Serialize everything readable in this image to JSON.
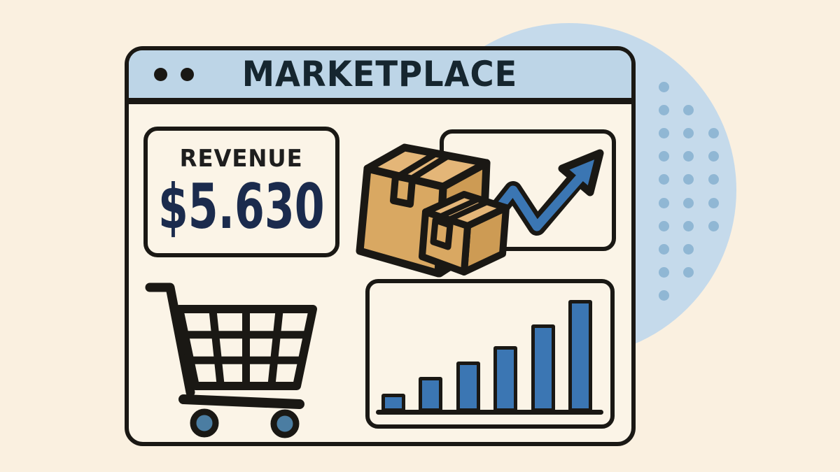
{
  "window": {
    "title": "MARKETPLACE",
    "control_dots": 2
  },
  "revenue_card": {
    "label": "REVENUE",
    "value": "$5.630"
  },
  "illustrations": {
    "packages_icon": "two-cardboard-boxes",
    "arrow_icon": "growth-zigzag-arrow",
    "cart_icon": "shopping-cart",
    "decor": "dotted-blue-circle"
  },
  "chart_data": {
    "type": "bar",
    "categories": [
      "",
      "",
      "",
      "",
      "",
      ""
    ],
    "values": [
      16,
      31,
      45,
      59,
      78,
      100
    ],
    "title": "",
    "xlabel": "",
    "ylabel": "",
    "ylim": [
      0,
      100
    ],
    "grid": false,
    "legend": false,
    "bar_color": "#3B76B3",
    "note": "pictogram bar chart with 6 rising bars, no axis labels"
  },
  "palette": {
    "background": "#FAF0E0",
    "window_bg": "#FBF4E7",
    "outline": "#1A1814",
    "titlebar_bg": "#BDD5E7",
    "title_text": "#16262F",
    "accent_blue": "#3B76B3",
    "navy_text": "#1B2B4D",
    "label_text": "#1E1E1E",
    "circle_bg": "#C5DAEB",
    "circle_dots": "#90B7D4",
    "box_front": "#D9A862",
    "box_top": "#E4B678",
    "box_side": "#CD9B54",
    "wheel_fill": "#4B7DA2"
  }
}
